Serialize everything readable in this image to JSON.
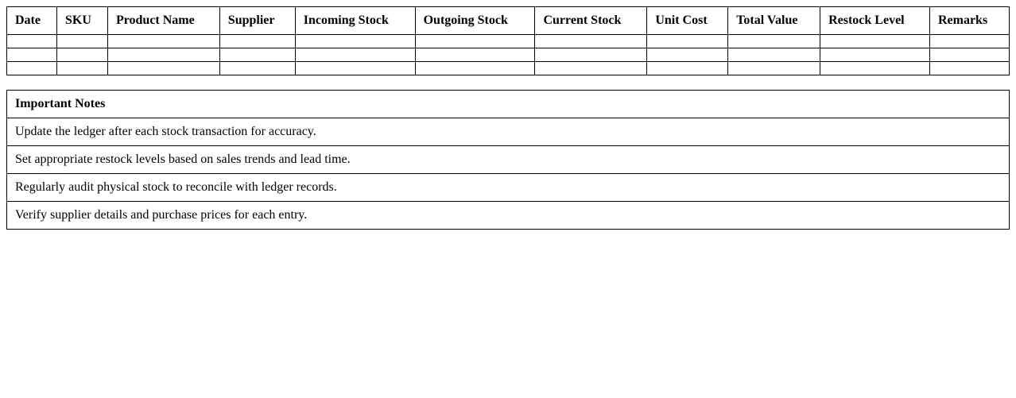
{
  "ledger": {
    "headers": [
      "Date",
      "SKU",
      "Product Name",
      "Supplier",
      "Incoming Stock",
      "Outgoing Stock",
      "Current Stock",
      "Unit Cost",
      "Total Value",
      "Restock Level",
      "Remarks"
    ]
  },
  "notes": {
    "title": "Important Notes",
    "items": [
      "Update the ledger after each stock transaction for accuracy.",
      "Set appropriate restock levels based on sales trends and lead time.",
      "Regularly audit physical stock to reconcile with ledger records.",
      "Verify supplier details and purchase prices for each entry."
    ]
  }
}
